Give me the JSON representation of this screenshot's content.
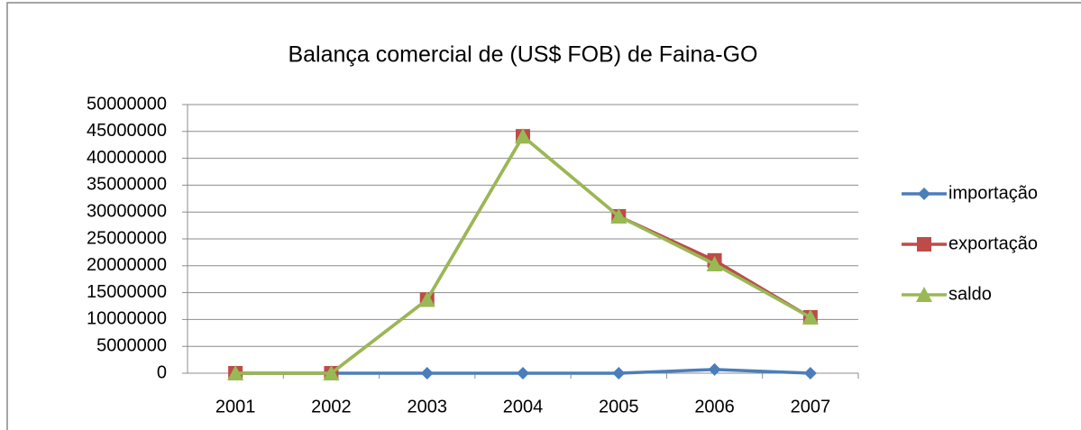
{
  "chart_data": {
    "type": "line",
    "title": "Balança comercial de (US$ FOB) de Faina-GO",
    "categories": [
      "2001",
      "2002",
      "2003",
      "2004",
      "2005",
      "2006",
      "2007"
    ],
    "series": [
      {
        "name": "importação",
        "color": "#4a7ebb",
        "marker": "diamond",
        "values": [
          0,
          0,
          0,
          0,
          0,
          700000,
          0
        ]
      },
      {
        "name": "exportação",
        "color": "#be4b48",
        "marker": "square",
        "values": [
          0,
          0,
          13700000,
          44100000,
          29200000,
          21000000,
          10400000
        ]
      },
      {
        "name": "saldo",
        "color": "#98b954",
        "marker": "triangle",
        "values": [
          0,
          0,
          13700000,
          44100000,
          29200000,
          20300000,
          10400000
        ]
      }
    ],
    "ylim": [
      0,
      50000000
    ],
    "yticks": [
      0,
      5000000,
      10000000,
      15000000,
      20000000,
      25000000,
      30000000,
      35000000,
      40000000,
      45000000,
      50000000
    ],
    "grid": true,
    "legend": "right"
  }
}
